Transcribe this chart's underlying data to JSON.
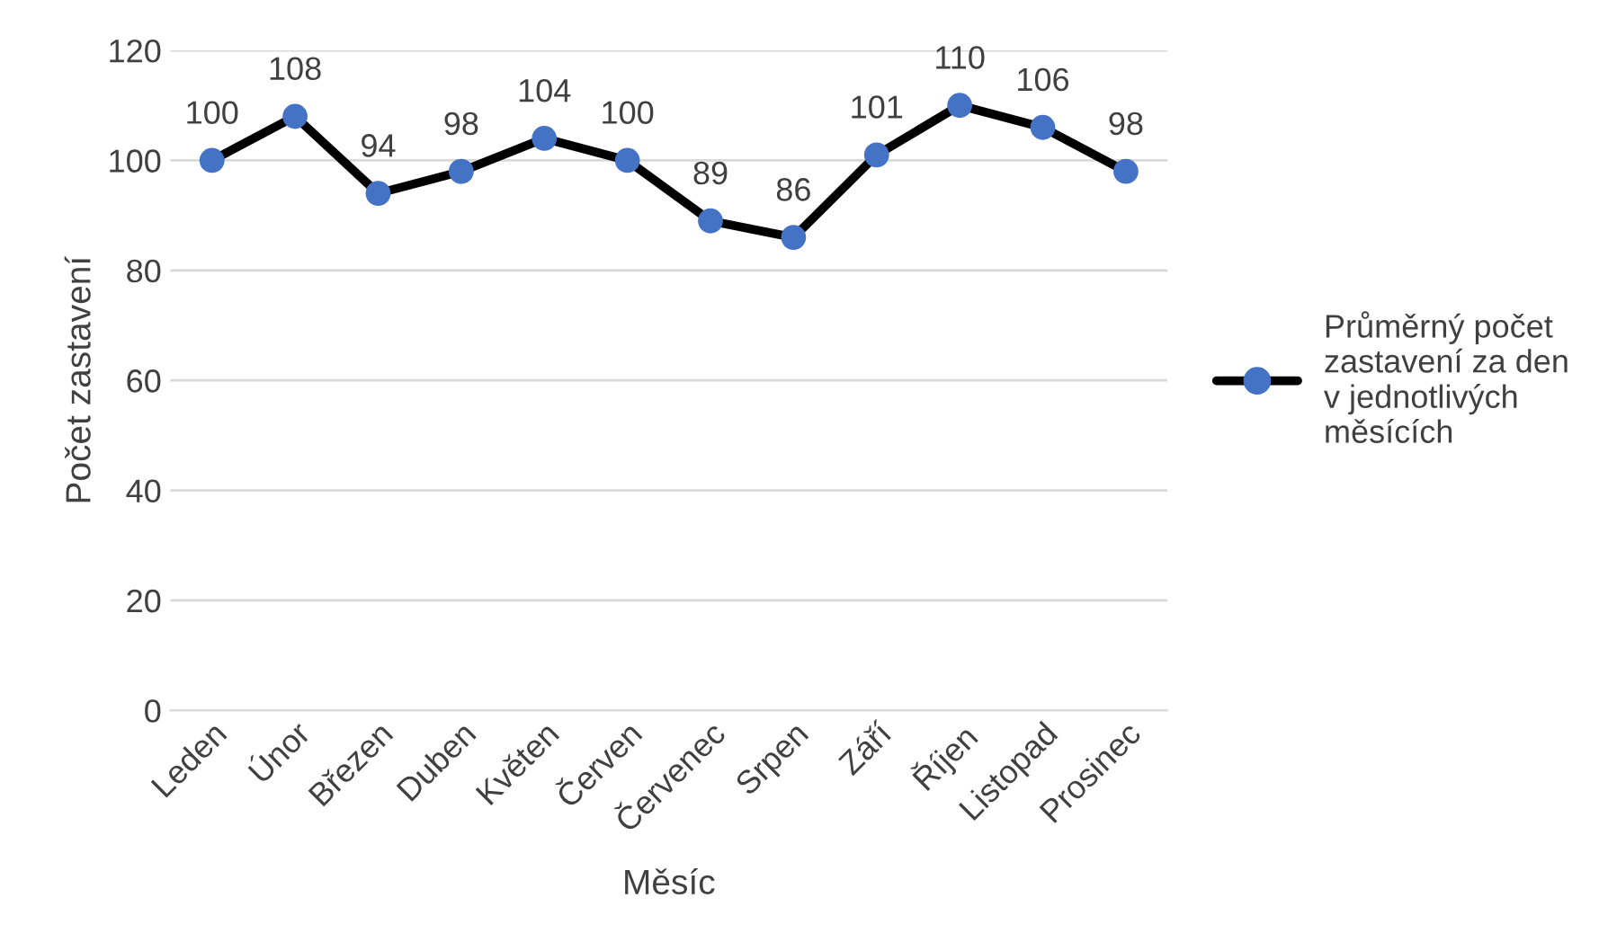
{
  "chart_data": {
    "type": "line",
    "xlabel": "Měsíc",
    "ylabel": "Počet zastavení",
    "categories": [
      "Leden",
      "Únor",
      "Březen",
      "Duben",
      "Květen",
      "Červen",
      "Červenec",
      "Srpen",
      "Září",
      "Říjen",
      "Listopad",
      "Prosinec"
    ],
    "series": [
      {
        "name": "Průměrný počet\nzastavení za den\nv jednotlivých\nměsících",
        "color": "#000000",
        "colors": [
          "#4472c4",
          "#4472c4",
          "#4472c4",
          "#4472c4",
          "#4472c4",
          "#4472c4",
          "#4472c4",
          "#4472c4",
          "#4472c4",
          "#4472c4",
          "#4472c4",
          "#4472c4"
        ],
        "values": [
          100,
          108,
          94,
          98,
          104,
          100,
          89,
          86,
          101,
          110,
          106,
          98
        ]
      }
    ],
    "ylim": [
      0,
      120
    ],
    "yticks": [
      0,
      20,
      40,
      60,
      80,
      100,
      120
    ],
    "grid": "y",
    "legend": "right",
    "marker": "circle",
    "line_style": "solid",
    "data_labels": true
  }
}
